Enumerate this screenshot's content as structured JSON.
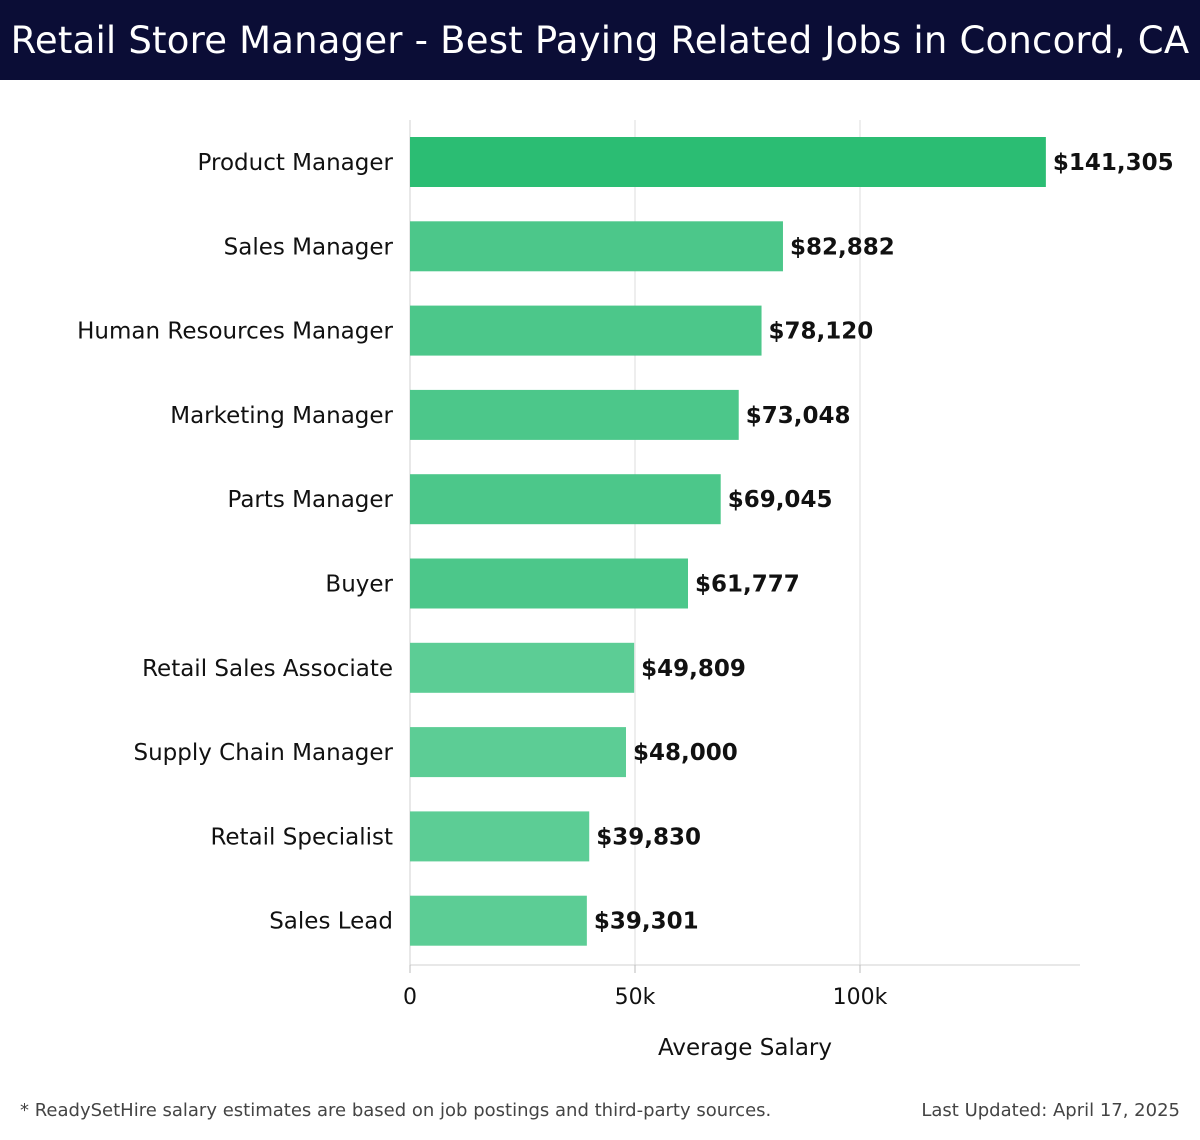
{
  "header": {
    "title": "Retail Store Manager - Best Paying Related Jobs in Concord, CA"
  },
  "colors": {
    "header_bg": "#0b0d36",
    "bar_top": "#2bbd73",
    "bar": "#4cc78a",
    "bar_light": "#5ccd95",
    "grid": "#dcdcdc",
    "text": "#111111"
  },
  "chart_data": {
    "type": "bar",
    "orientation": "horizontal",
    "categories": [
      "Product Manager",
      "Sales Manager",
      "Human Resources Manager",
      "Marketing Manager",
      "Parts Manager",
      "Buyer",
      "Retail Sales Associate",
      "Supply Chain Manager",
      "Retail Specialist",
      "Sales Lead"
    ],
    "values": [
      141305,
      82882,
      78120,
      73048,
      69045,
      61777,
      49809,
      48000,
      39830,
      39301
    ],
    "value_labels": [
      "$141,305",
      "$82,882",
      "$78,120",
      "$73,048",
      "$69,045",
      "$61,777",
      "$49,809",
      "$48,000",
      "$39,830",
      "$39,301"
    ],
    "xlabel": "Average Salary",
    "ylabel": "",
    "x_ticks": [
      0,
      50000,
      100000
    ],
    "x_tick_labels": [
      "0",
      "50k",
      "100k"
    ],
    "xlim": [
      0,
      149000
    ],
    "grid": true
  },
  "footer": {
    "note": "* ReadySetHire salary estimates are based on job postings and third-party sources.",
    "updated": "Last Updated: April 17, 2025"
  }
}
